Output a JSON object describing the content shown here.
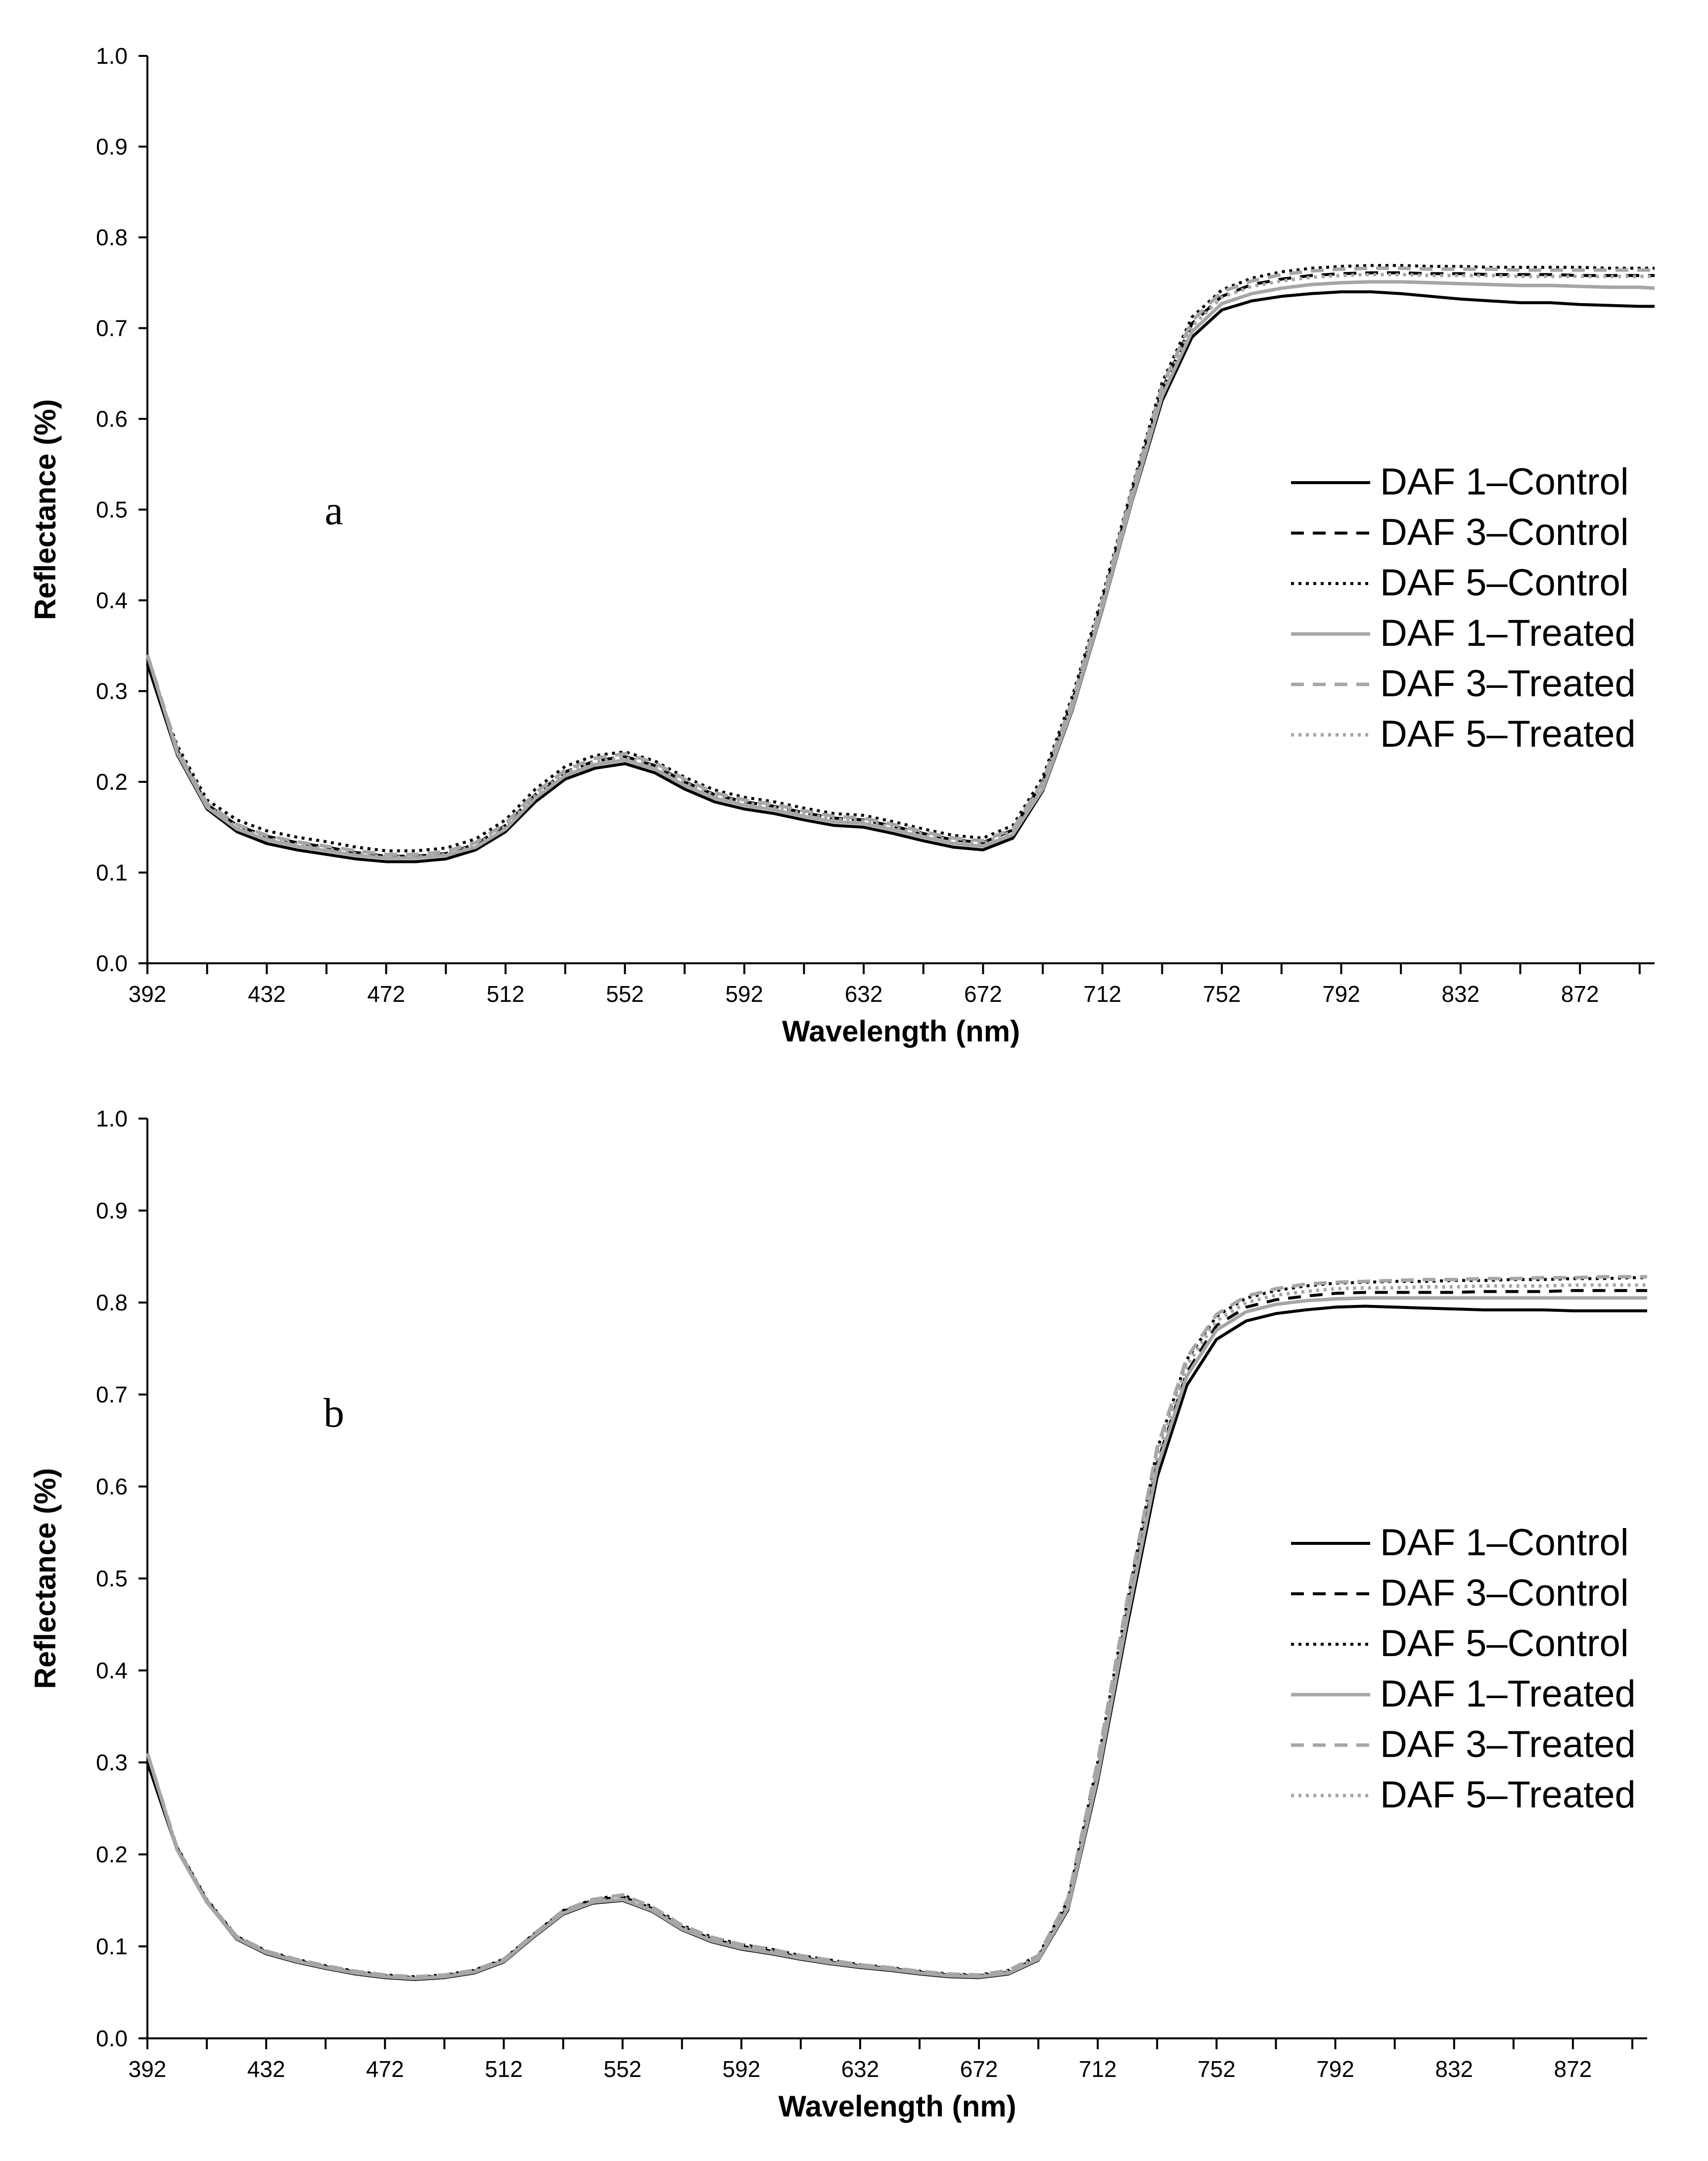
{
  "colors": {
    "control": "#000000",
    "treated": "#a6a6a6",
    "axis": "#000000"
  },
  "chart_data": [
    {
      "type": "line",
      "panel_label": "a",
      "xlabel": "Wavelength (nm)",
      "ylabel": "Reflectance (%)",
      "xlim": [
        392,
        897
      ],
      "ylim": [
        0.0,
        1.0
      ],
      "x_tick_labels": [
        "392",
        "432",
        "472",
        "512",
        "552",
        "592",
        "632",
        "672",
        "712",
        "752",
        "792",
        "832",
        "872"
      ],
      "y_tick_labels": [
        "0.0",
        "0.1",
        "0.2",
        "0.3",
        "0.4",
        "0.5",
        "0.6",
        "0.7",
        "0.8",
        "0.9",
        "1.0"
      ],
      "legend_position": "right",
      "x": [
        392,
        402,
        412,
        422,
        432,
        442,
        452,
        462,
        472,
        482,
        492,
        502,
        512,
        522,
        532,
        542,
        552,
        562,
        572,
        582,
        592,
        602,
        612,
        622,
        632,
        642,
        652,
        662,
        672,
        682,
        692,
        702,
        712,
        722,
        732,
        742,
        752,
        762,
        772,
        782,
        792,
        802,
        812,
        822,
        832,
        842,
        852,
        862,
        872,
        882,
        892,
        897
      ],
      "series": [
        {
          "name": "DAF 1–Control",
          "color": "#000000",
          "dash": "solid",
          "values": [
            0.33,
            0.23,
            0.17,
            0.145,
            0.132,
            0.125,
            0.12,
            0.115,
            0.112,
            0.112,
            0.115,
            0.125,
            0.145,
            0.178,
            0.203,
            0.215,
            0.22,
            0.21,
            0.192,
            0.178,
            0.17,
            0.165,
            0.158,
            0.152,
            0.15,
            0.143,
            0.135,
            0.128,
            0.125,
            0.138,
            0.19,
            0.28,
            0.39,
            0.51,
            0.62,
            0.69,
            0.72,
            0.73,
            0.735,
            0.738,
            0.74,
            0.74,
            0.738,
            0.735,
            0.732,
            0.73,
            0.728,
            0.728,
            0.726,
            0.725,
            0.724,
            0.724
          ]
        },
        {
          "name": "DAF 3–Control",
          "color": "#000000",
          "dash": "dashed",
          "values": [
            0.33,
            0.235,
            0.175,
            0.152,
            0.14,
            0.133,
            0.128,
            0.122,
            0.118,
            0.118,
            0.121,
            0.131,
            0.152,
            0.186,
            0.211,
            0.223,
            0.228,
            0.218,
            0.2,
            0.186,
            0.178,
            0.173,
            0.166,
            0.16,
            0.158,
            0.151,
            0.143,
            0.136,
            0.133,
            0.147,
            0.2,
            0.29,
            0.4,
            0.52,
            0.632,
            0.705,
            0.735,
            0.748,
            0.754,
            0.758,
            0.76,
            0.761,
            0.761,
            0.76,
            0.76,
            0.759,
            0.759,
            0.759,
            0.758,
            0.758,
            0.758,
            0.758
          ]
        },
        {
          "name": "DAF 5–Control",
          "color": "#000000",
          "dash": "dotted",
          "values": [
            0.33,
            0.24,
            0.18,
            0.158,
            0.146,
            0.139,
            0.134,
            0.128,
            0.124,
            0.124,
            0.127,
            0.137,
            0.158,
            0.192,
            0.217,
            0.229,
            0.233,
            0.223,
            0.205,
            0.191,
            0.183,
            0.178,
            0.171,
            0.165,
            0.163,
            0.156,
            0.148,
            0.141,
            0.138,
            0.152,
            0.205,
            0.295,
            0.405,
            0.525,
            0.64,
            0.712,
            0.742,
            0.755,
            0.762,
            0.766,
            0.768,
            0.769,
            0.769,
            0.768,
            0.768,
            0.767,
            0.767,
            0.767,
            0.767,
            0.766,
            0.766,
            0.766
          ]
        },
        {
          "name": "DAF 1–Treated",
          "color": "#a6a6a6",
          "dash": "solid",
          "values": [
            0.34,
            0.232,
            0.172,
            0.148,
            0.136,
            0.129,
            0.124,
            0.119,
            0.116,
            0.116,
            0.119,
            0.128,
            0.148,
            0.182,
            0.207,
            0.219,
            0.224,
            0.214,
            0.196,
            0.182,
            0.174,
            0.169,
            0.162,
            0.156,
            0.154,
            0.147,
            0.139,
            0.132,
            0.129,
            0.142,
            0.192,
            0.282,
            0.392,
            0.512,
            0.625,
            0.696,
            0.727,
            0.738,
            0.744,
            0.748,
            0.75,
            0.751,
            0.751,
            0.75,
            0.749,
            0.748,
            0.747,
            0.747,
            0.746,
            0.745,
            0.745,
            0.744
          ]
        },
        {
          "name": "DAF 3–Treated",
          "color": "#a6a6a6",
          "dash": "dashed",
          "values": [
            0.34,
            0.236,
            0.176,
            0.153,
            0.141,
            0.134,
            0.129,
            0.124,
            0.12,
            0.12,
            0.123,
            0.133,
            0.154,
            0.188,
            0.213,
            0.226,
            0.231,
            0.221,
            0.203,
            0.188,
            0.18,
            0.175,
            0.168,
            0.162,
            0.16,
            0.153,
            0.145,
            0.138,
            0.135,
            0.148,
            0.2,
            0.29,
            0.4,
            0.522,
            0.636,
            0.708,
            0.74,
            0.752,
            0.759,
            0.763,
            0.765,
            0.766,
            0.766,
            0.765,
            0.765,
            0.765,
            0.764,
            0.764,
            0.764,
            0.764,
            0.764,
            0.764
          ]
        },
        {
          "name": "DAF 5–Treated",
          "color": "#a6a6a6",
          "dash": "dotted",
          "values": [
            0.34,
            0.234,
            0.174,
            0.15,
            0.138,
            0.131,
            0.126,
            0.121,
            0.117,
            0.117,
            0.12,
            0.13,
            0.151,
            0.185,
            0.21,
            0.222,
            0.227,
            0.217,
            0.199,
            0.185,
            0.177,
            0.172,
            0.165,
            0.159,
            0.157,
            0.15,
            0.142,
            0.135,
            0.132,
            0.146,
            0.198,
            0.287,
            0.396,
            0.516,
            0.63,
            0.702,
            0.734,
            0.746,
            0.752,
            0.756,
            0.758,
            0.759,
            0.759,
            0.758,
            0.758,
            0.758,
            0.757,
            0.757,
            0.757,
            0.757,
            0.757,
            0.757
          ]
        }
      ]
    },
    {
      "type": "line",
      "panel_label": "b",
      "xlabel": "Wavelength (nm)",
      "ylabel": "Reflectance (%)",
      "xlim": [
        392,
        897
      ],
      "ylim": [
        0.0,
        1.0
      ],
      "x_tick_labels": [
        "392",
        "432",
        "472",
        "512",
        "552",
        "592",
        "632",
        "672",
        "712",
        "752",
        "792",
        "832",
        "872"
      ],
      "y_tick_labels": [
        "0.0",
        "0.1",
        "0.2",
        "0.3",
        "0.4",
        "0.5",
        "0.6",
        "0.7",
        "0.8",
        "0.9",
        "1.0"
      ],
      "legend_position": "right",
      "x": [
        392,
        402,
        412,
        422,
        432,
        442,
        452,
        462,
        472,
        482,
        492,
        502,
        512,
        522,
        532,
        542,
        552,
        562,
        572,
        582,
        592,
        602,
        612,
        622,
        632,
        642,
        652,
        662,
        672,
        682,
        692,
        702,
        712,
        722,
        732,
        742,
        752,
        762,
        772,
        782,
        792,
        802,
        812,
        822,
        832,
        842,
        852,
        862,
        872,
        882,
        892,
        897
      ],
      "series": [
        {
          "name": "DAF 1–Control",
          "color": "#000000",
          "dash": "solid",
          "values": [
            0.3,
            0.205,
            0.148,
            0.108,
            0.092,
            0.083,
            0.076,
            0.07,
            0.066,
            0.064,
            0.066,
            0.071,
            0.083,
            0.11,
            0.135,
            0.147,
            0.15,
            0.138,
            0.118,
            0.105,
            0.097,
            0.092,
            0.086,
            0.081,
            0.077,
            0.074,
            0.07,
            0.067,
            0.066,
            0.07,
            0.085,
            0.14,
            0.28,
            0.45,
            0.61,
            0.71,
            0.76,
            0.78,
            0.788,
            0.792,
            0.795,
            0.796,
            0.795,
            0.794,
            0.793,
            0.792,
            0.792,
            0.792,
            0.791,
            0.791,
            0.791,
            0.791
          ]
        },
        {
          "name": "DAF 3–Control",
          "color": "#000000",
          "dash": "dashed",
          "values": [
            0.3,
            0.207,
            0.15,
            0.11,
            0.094,
            0.085,
            0.078,
            0.072,
            0.068,
            0.066,
            0.068,
            0.073,
            0.085,
            0.112,
            0.138,
            0.15,
            0.154,
            0.141,
            0.121,
            0.108,
            0.1,
            0.095,
            0.088,
            0.083,
            0.079,
            0.076,
            0.072,
            0.069,
            0.068,
            0.072,
            0.088,
            0.145,
            0.29,
            0.465,
            0.625,
            0.724,
            0.775,
            0.795,
            0.803,
            0.807,
            0.81,
            0.811,
            0.811,
            0.811,
            0.811,
            0.812,
            0.812,
            0.812,
            0.813,
            0.813,
            0.813,
            0.813
          ]
        },
        {
          "name": "DAF 5–Control",
          "color": "#000000",
          "dash": "dotted",
          "values": [
            0.3,
            0.208,
            0.151,
            0.111,
            0.095,
            0.086,
            0.079,
            0.073,
            0.069,
            0.067,
            0.069,
            0.074,
            0.086,
            0.113,
            0.139,
            0.151,
            0.156,
            0.143,
            0.123,
            0.11,
            0.102,
            0.097,
            0.09,
            0.085,
            0.08,
            0.077,
            0.073,
            0.07,
            0.069,
            0.074,
            0.09,
            0.15,
            0.3,
            0.475,
            0.64,
            0.738,
            0.785,
            0.805,
            0.813,
            0.818,
            0.821,
            0.822,
            0.823,
            0.823,
            0.824,
            0.824,
            0.825,
            0.825,
            0.826,
            0.826,
            0.827,
            0.827
          ]
        },
        {
          "name": "DAF 1–Treated",
          "color": "#a6a6a6",
          "dash": "solid",
          "values": [
            0.31,
            0.205,
            0.148,
            0.109,
            0.093,
            0.084,
            0.077,
            0.071,
            0.067,
            0.065,
            0.067,
            0.072,
            0.084,
            0.111,
            0.136,
            0.148,
            0.151,
            0.139,
            0.119,
            0.106,
            0.098,
            0.093,
            0.087,
            0.082,
            0.078,
            0.075,
            0.071,
            0.068,
            0.067,
            0.071,
            0.086,
            0.142,
            0.285,
            0.458,
            0.62,
            0.72,
            0.77,
            0.79,
            0.798,
            0.802,
            0.804,
            0.805,
            0.805,
            0.805,
            0.805,
            0.805,
            0.805,
            0.805,
            0.805,
            0.805,
            0.805,
            0.805
          ]
        },
        {
          "name": "DAF 3–Treated",
          "color": "#a6a6a6",
          "dash": "dashed",
          "values": [
            0.31,
            0.207,
            0.15,
            0.111,
            0.095,
            0.086,
            0.079,
            0.073,
            0.069,
            0.067,
            0.069,
            0.074,
            0.086,
            0.113,
            0.139,
            0.151,
            0.156,
            0.143,
            0.123,
            0.11,
            0.102,
            0.097,
            0.09,
            0.085,
            0.08,
            0.077,
            0.073,
            0.07,
            0.069,
            0.074,
            0.09,
            0.152,
            0.302,
            0.478,
            0.642,
            0.74,
            0.787,
            0.807,
            0.815,
            0.82,
            0.822,
            0.823,
            0.824,
            0.825,
            0.825,
            0.826,
            0.826,
            0.827,
            0.827,
            0.828,
            0.828,
            0.828
          ]
        },
        {
          "name": "DAF 5–Treated",
          "color": "#a6a6a6",
          "dash": "dotted",
          "values": [
            0.31,
            0.206,
            0.149,
            0.11,
            0.094,
            0.085,
            0.078,
            0.072,
            0.068,
            0.066,
            0.068,
            0.073,
            0.085,
            0.112,
            0.137,
            0.149,
            0.153,
            0.141,
            0.121,
            0.108,
            0.1,
            0.095,
            0.088,
            0.083,
            0.079,
            0.076,
            0.072,
            0.069,
            0.068,
            0.073,
            0.088,
            0.148,
            0.295,
            0.47,
            0.633,
            0.732,
            0.78,
            0.8,
            0.808,
            0.812,
            0.815,
            0.816,
            0.816,
            0.817,
            0.817,
            0.818,
            0.818,
            0.818,
            0.819,
            0.819,
            0.819,
            0.819
          ]
        }
      ]
    }
  ]
}
